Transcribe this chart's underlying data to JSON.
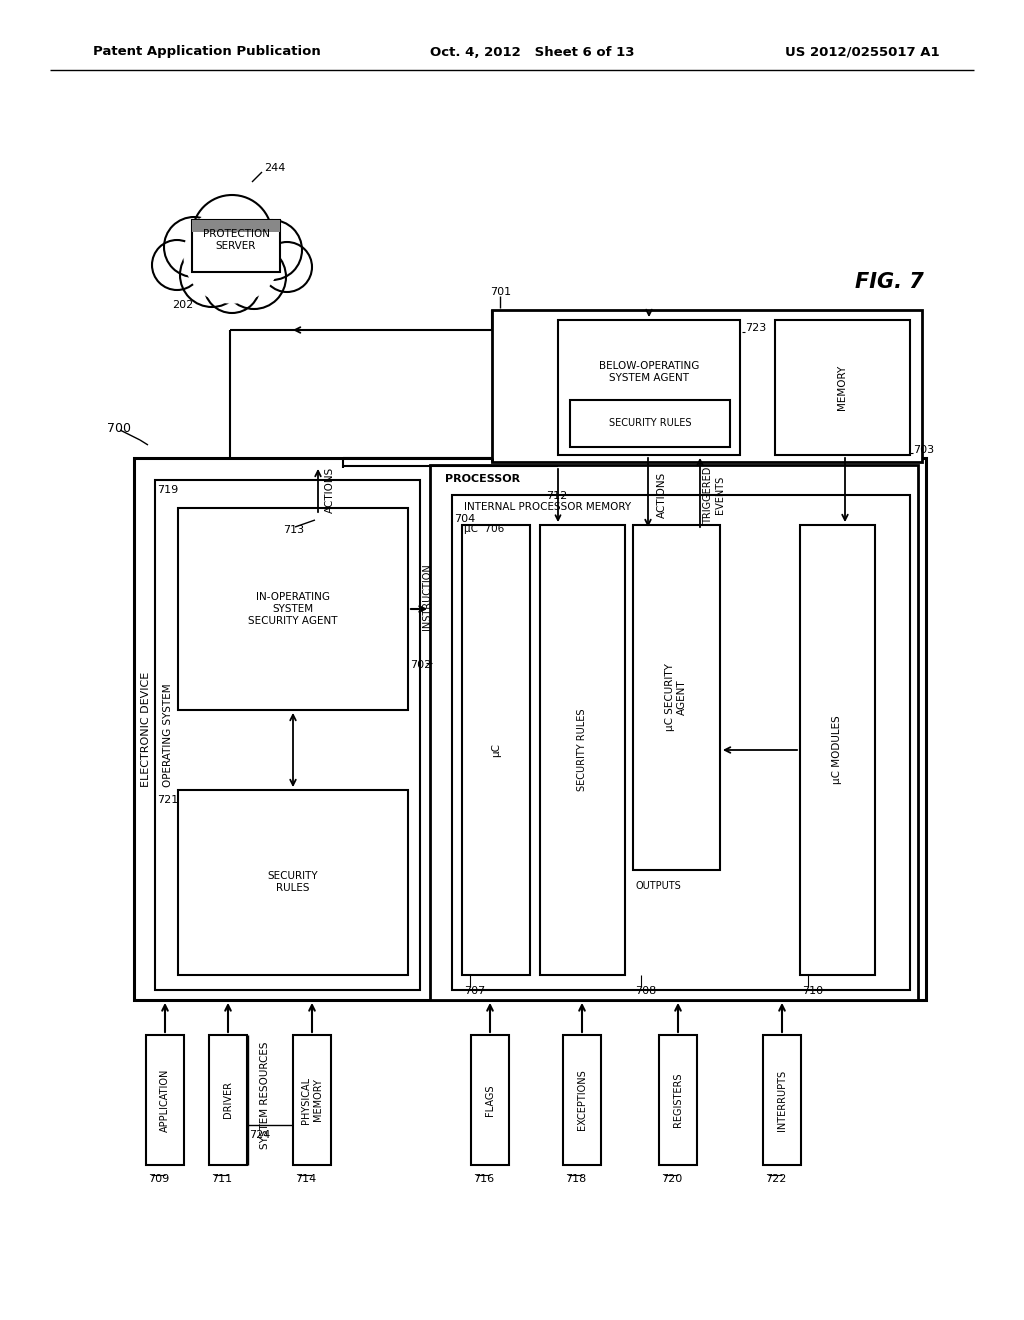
{
  "header_left": "Patent Application Publication",
  "header_mid": "Oct. 4, 2012   Sheet 6 of 13",
  "header_right": "US 2012/0255017 A1",
  "fig_label": "FIG. 7",
  "bg": "#ffffff"
}
